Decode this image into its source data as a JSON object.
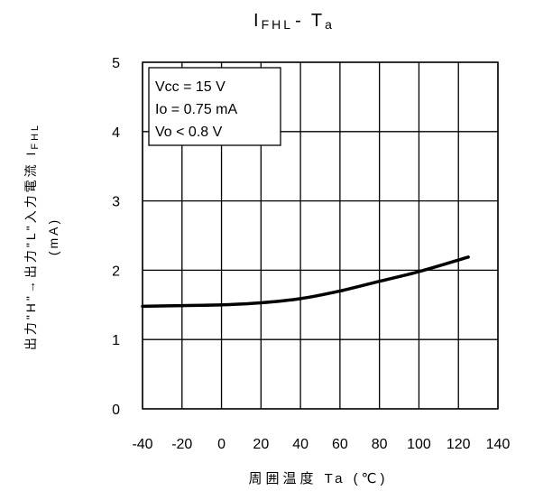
{
  "chart_data": {
    "type": "line",
    "title": "IFHL - Ta",
    "title_parts": {
      "main": "I",
      "main_sub": "FHL",
      "sep": "- ",
      "var": "T",
      "var_sub": "a"
    },
    "xlabel": "周囲温度  Ta (℃)",
    "ylabel_line1": "出力\"H\"→出力\"L\"入力電流  I",
    "ylabel_line1_sub": "FHL",
    "ylabel_line2": "(mA)",
    "xlim": [
      -40,
      140
    ],
    "ylim": [
      0,
      5
    ],
    "x_ticks": [
      -40,
      -20,
      0,
      20,
      40,
      60,
      80,
      100,
      120,
      140
    ],
    "y_ticks": [
      0,
      1,
      2,
      3,
      4,
      5
    ],
    "grid": true,
    "conditions": [
      "Vcc = 15 V",
      "Io = 0.75 mA",
      "Vo < 0.8 V"
    ],
    "series": [
      {
        "x": [
          -40,
          -20,
          0,
          20,
          40,
          60,
          80,
          100,
          125
        ],
        "y": [
          1.48,
          1.49,
          1.5,
          1.53,
          1.59,
          1.7,
          1.84,
          1.98,
          2.19
        ]
      }
    ],
    "colors": {
      "line": "#000000",
      "grid": "#000000"
    }
  }
}
